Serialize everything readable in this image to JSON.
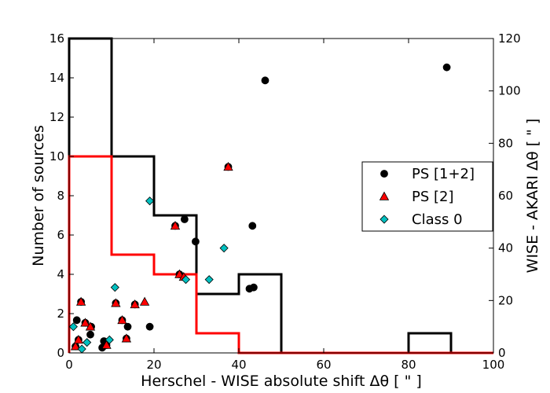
{
  "chart_data": {
    "type": "scatter",
    "title": "",
    "xlabel": "Herschel - WISE absolute shift Δθ [ \" ]",
    "ylabel": "Number of sources",
    "y2label": "WISE - AKARI Δθ [ \" ]",
    "xlim": [
      0,
      100
    ],
    "ylim": [
      0,
      16
    ],
    "y2lim": [
      0,
      120
    ],
    "xticks": [
      "0",
      "20",
      "40",
      "60",
      "80",
      "100"
    ],
    "yticks": [
      "0",
      "2",
      "4",
      "6",
      "8",
      "10",
      "12",
      "14",
      "16"
    ],
    "y2ticks": [
      "0",
      "20",
      "40",
      "60",
      "80",
      "100",
      "120"
    ],
    "legend_position": "center-right",
    "histograms": [
      {
        "color": "#000000",
        "bin_edges": [
          0,
          10,
          20,
          30,
          40,
          50,
          60,
          70,
          80,
          90,
          100
        ],
        "counts": [
          16,
          10,
          7,
          3,
          4,
          0,
          0,
          0,
          1,
          0
        ]
      },
      {
        "color": "#ff0000",
        "bin_edges": [
          0,
          10,
          20,
          30,
          40,
          50,
          60,
          70,
          80,
          90,
          100
        ],
        "counts": [
          10,
          5,
          4,
          1,
          0,
          0,
          0,
          0,
          0,
          0
        ]
      }
    ],
    "series": [
      {
        "name": "PS [1+2]",
        "marker": "circle",
        "color": "#000000",
        "points": [
          [
            1.5,
            2.5
          ],
          [
            1.8,
            12.5
          ],
          [
            2.2,
            5.0
          ],
          [
            2.8,
            19.5
          ],
          [
            3.8,
            11.5
          ],
          [
            5.0,
            7.0
          ],
          [
            5.2,
            10.0
          ],
          [
            7.8,
            2.0
          ],
          [
            8.2,
            4.5
          ],
          [
            8.8,
            3.0
          ],
          [
            11.0,
            19.0
          ],
          [
            12.5,
            12.5
          ],
          [
            13.5,
            5.5
          ],
          [
            13.8,
            10.0
          ],
          [
            15.5,
            18.5
          ],
          [
            19.0,
            10.0
          ],
          [
            25.0,
            48.5
          ],
          [
            26.0,
            30.0
          ],
          [
            27.2,
            51.0
          ],
          [
            29.8,
            42.5
          ],
          [
            37.5,
            71.0
          ],
          [
            42.5,
            24.5
          ],
          [
            43.2,
            48.5
          ],
          [
            43.5,
            25.0
          ],
          [
            46.2,
            104.0
          ],
          [
            89.0,
            109.0
          ]
        ]
      },
      {
        "name": "PS [2]",
        "marker": "triangle",
        "color": "#ff0000",
        "points": [
          [
            1.5,
            2.5
          ],
          [
            2.2,
            5.0
          ],
          [
            2.8,
            19.5
          ],
          [
            3.8,
            11.5
          ],
          [
            5.0,
            10.0
          ],
          [
            8.8,
            3.0
          ],
          [
            11.0,
            19.0
          ],
          [
            12.5,
            12.5
          ],
          [
            13.5,
            5.5
          ],
          [
            15.5,
            18.5
          ],
          [
            17.8,
            19.5
          ],
          [
            25.0,
            48.5
          ],
          [
            26.0,
            30.0
          ],
          [
            27.0,
            29.0
          ],
          [
            37.5,
            71.0
          ]
        ]
      },
      {
        "name": "Class 0",
        "marker": "diamond",
        "color": "#00c0c0",
        "points": [
          [
            1.0,
            10.0
          ],
          [
            3.0,
            1.5
          ],
          [
            4.2,
            4.0
          ],
          [
            9.5,
            5.0
          ],
          [
            10.8,
            25.0
          ],
          [
            19.0,
            58.0
          ],
          [
            27.5,
            28.0
          ],
          [
            33.0,
            28.0
          ],
          [
            36.5,
            40.0
          ]
        ]
      }
    ]
  }
}
